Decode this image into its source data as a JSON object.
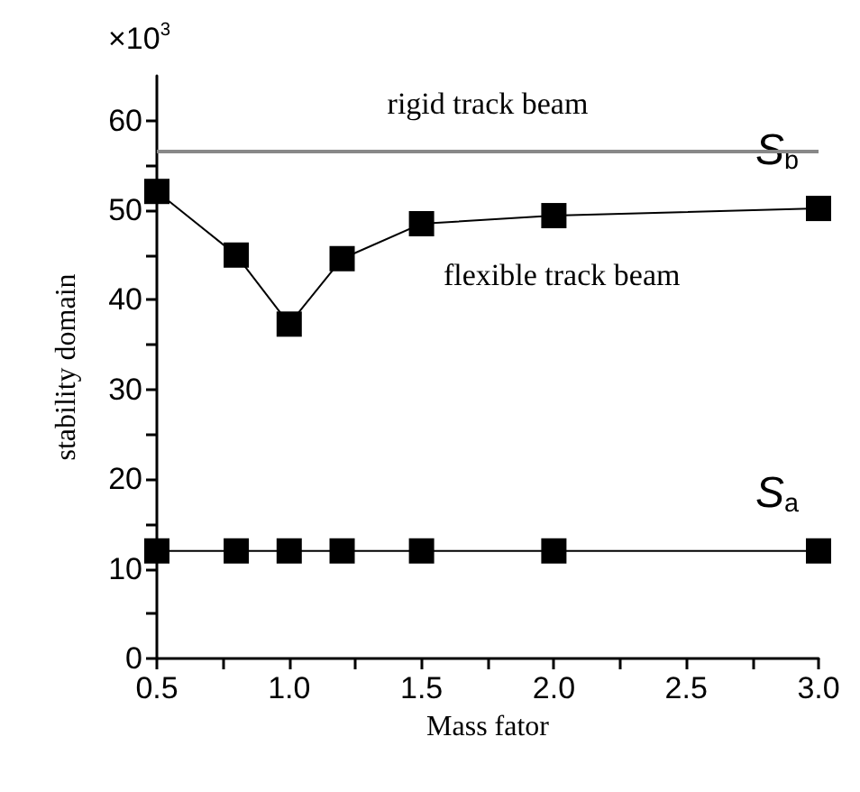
{
  "chart_data": {
    "type": "line",
    "xlabel": "Mass fator",
    "ylabel": "stability domain",
    "marker": "square",
    "grid": false,
    "legend": false,
    "xlim": [
      0.5,
      3.0
    ],
    "ylim": [
      0,
      65
    ],
    "xticks": [
      {
        "value": 0.5,
        "label": "0.5"
      },
      {
        "value": 0.75,
        "label": null
      },
      {
        "value": 1.0,
        "label": "1.0"
      },
      {
        "value": 1.25,
        "label": null
      },
      {
        "value": 1.5,
        "label": "1.5"
      },
      {
        "value": 1.75,
        "label": null
      },
      {
        "value": 2.0,
        "label": "2.0"
      },
      {
        "value": 2.25,
        "label": null
      },
      {
        "value": 2.5,
        "label": "2.5"
      },
      {
        "value": 2.75,
        "label": null
      },
      {
        "value": 3.0,
        "label": "3.0"
      }
    ],
    "yticks": [
      0,
      {
        "value": 5,
        "label": null
      },
      10,
      {
        "value": 15,
        "label": null
      },
      20,
      {
        "value": 25,
        "label": null
      },
      30,
      {
        "value": 35,
        "label": null
      },
      40,
      {
        "value": 45,
        "label": null
      },
      50,
      {
        "value": 55,
        "label": null
      },
      60
    ],
    "x": [
      0.5,
      0.8,
      1.0,
      1.2,
      1.5,
      2.0,
      3.0
    ],
    "series": [
      {
        "name": "S$_{b}$",
        "color": "#000000",
        "values": [
          52.1,
          45,
          37.3,
          44.6,
          48.5,
          49.4,
          50.2
        ]
      },
      {
        "name": "S$_{a}$",
        "color": "#000000",
        "values": [
          12,
          12,
          12,
          12,
          12,
          12,
          12
        ]
      }
    ],
    "ref_lines": [
      {
        "axis": "y",
        "value": 56.5,
        "label": "rigid track beam",
        "color": "#888888"
      }
    ],
    "annotations": [
      "×10$^{3}$",
      "flexible track beam"
    ]
  }
}
